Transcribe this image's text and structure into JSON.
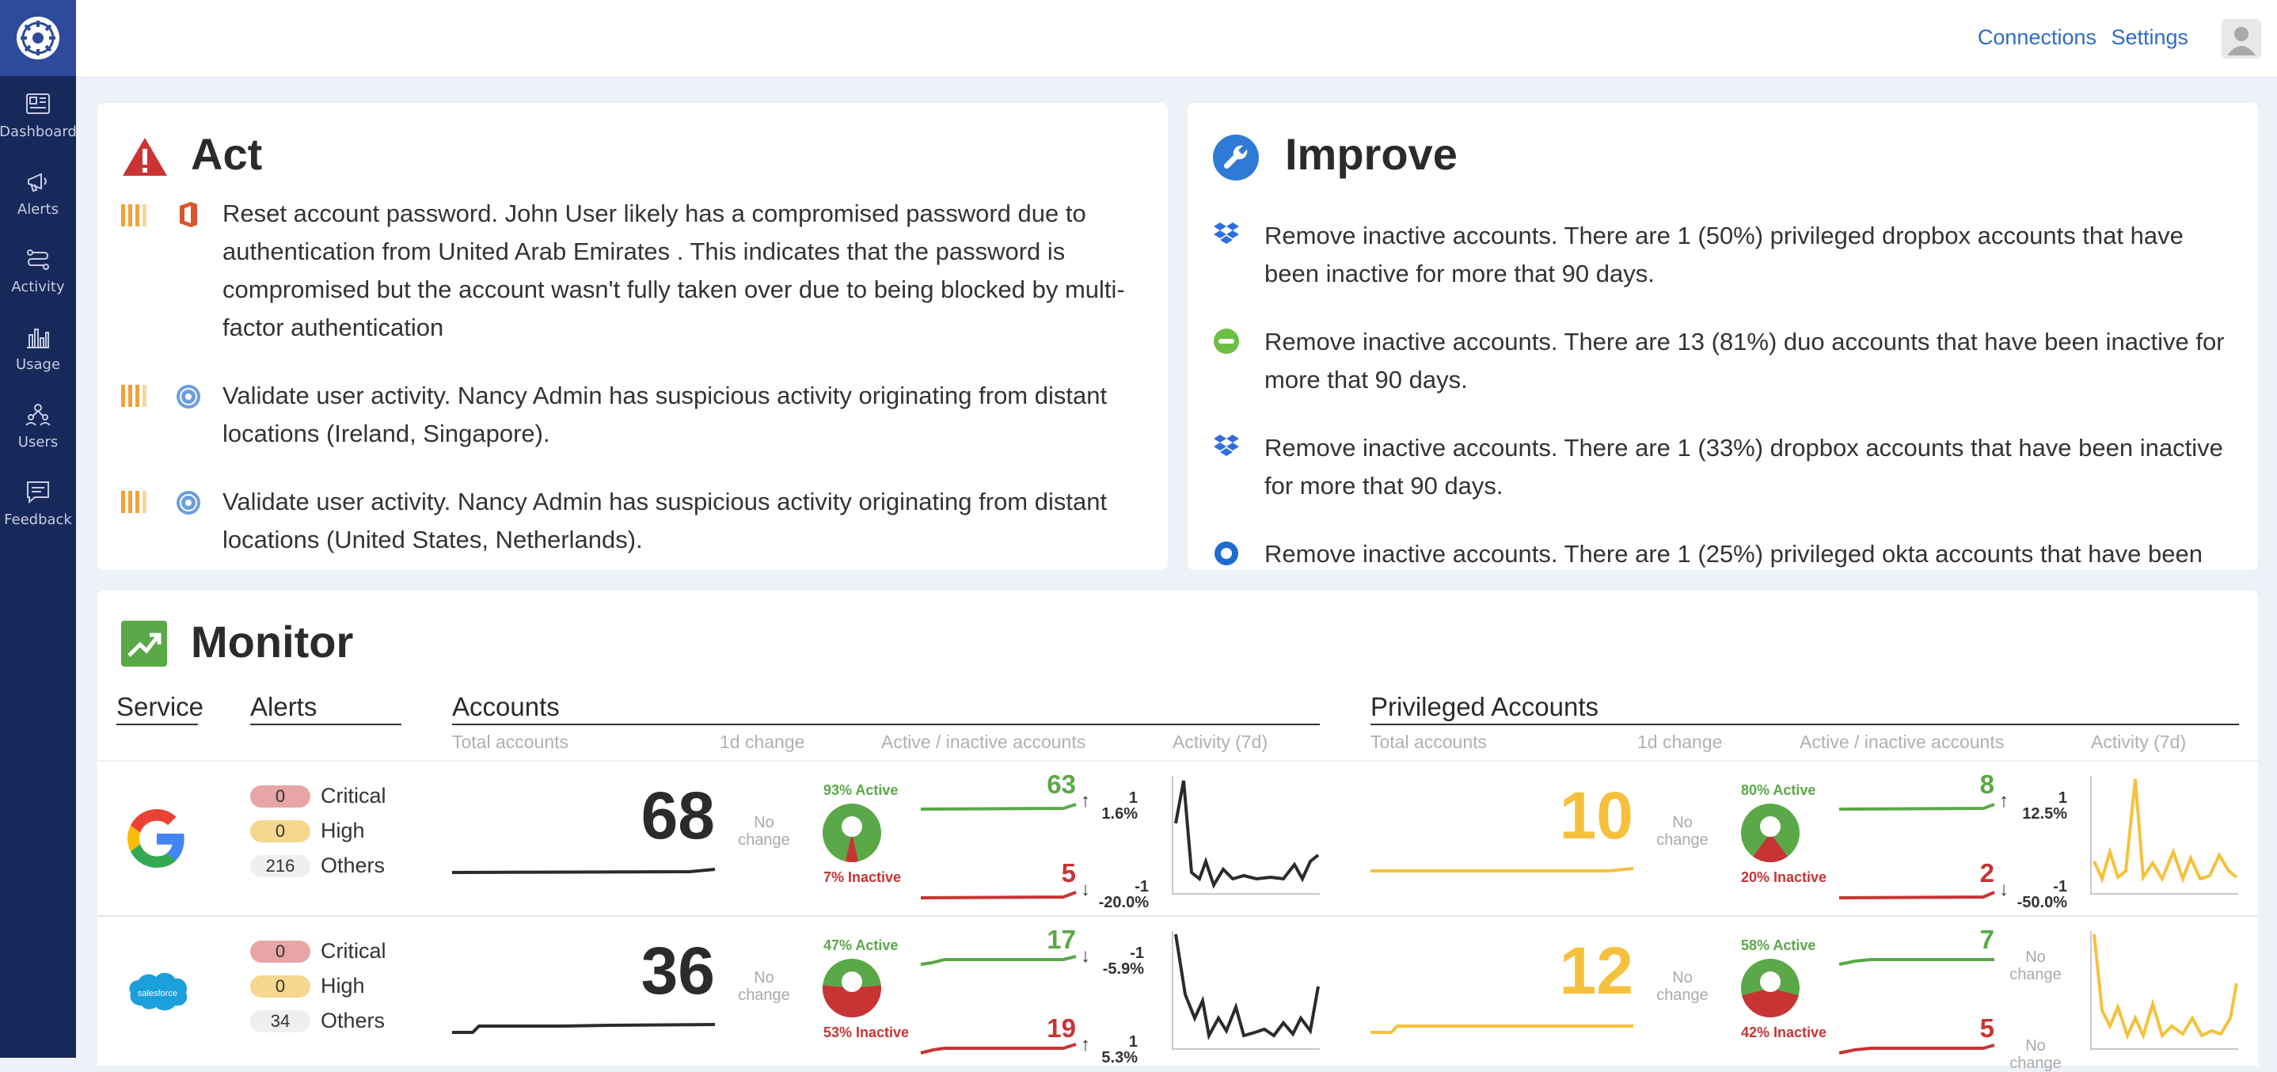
{
  "sidebar": {
    "items": [
      {
        "label": "Dashboard",
        "icon": "dashboard-icon"
      },
      {
        "label": "Alerts",
        "icon": "megaphone-icon"
      },
      {
        "label": "Activity",
        "icon": "activity-icon"
      },
      {
        "label": "Usage",
        "icon": "usage-chart-icon"
      },
      {
        "label": "Users",
        "icon": "users-icon"
      },
      {
        "label": "Feedback",
        "icon": "feedback-icon"
      }
    ]
  },
  "topbar": {
    "connections": "Connections",
    "settings": "Settings"
  },
  "act": {
    "title": "Act",
    "items": [
      {
        "text": "Reset account password. John User likely has a compromised password due to authentication from United Arab Emirates . This indicates that the password is compromised but the account wasn't fully taken over due to being blocked by multi-factor authentication",
        "service_icon": "office-icon"
      },
      {
        "text": "Validate user activity. Nancy Admin has suspicious activity originating from distant locations (Ireland, Singapore).",
        "service_icon": "app-logo-icon"
      },
      {
        "text": "Validate user activity. Nancy Admin has suspicious activity originating from distant locations (United States, Netherlands).",
        "service_icon": "app-logo-icon"
      }
    ]
  },
  "improve": {
    "title": "Improve",
    "items": [
      {
        "text": "Remove inactive accounts. There are 1 (50%) privileged dropbox accounts that have been inactive for more that 90 days.",
        "service_icon": "dropbox-icon"
      },
      {
        "text": "Remove inactive accounts. There are 13 (81%) duo accounts that have been inactive for more that 90 days.",
        "service_icon": "duo-icon"
      },
      {
        "text": "Remove inactive accounts. There are 1 (33%) dropbox accounts that have been inactive for more that 90 days.",
        "service_icon": "dropbox-icon"
      },
      {
        "text": "Remove inactive accounts. There are 1 (25%) privileged okta accounts that have been",
        "service_icon": "okta-icon"
      }
    ]
  },
  "monitor": {
    "title": "Monitor",
    "headers": {
      "service": "Service",
      "alerts": "Alerts",
      "accounts": "Accounts",
      "privileged": "Privileged Accounts"
    },
    "subheaders": {
      "total": "Total accounts",
      "change": "1d change",
      "active_inactive": "Active / inactive accounts",
      "activity": "Activity (7d)"
    },
    "alert_labels": {
      "critical": "Critical",
      "high": "High",
      "others": "Others"
    },
    "no_change": [
      "No",
      "change"
    ],
    "colors": {
      "green": "#5aa847",
      "red": "#c83434",
      "yellow": "#f5c13d",
      "dark": "#2b2b2b"
    },
    "rows": [
      {
        "service": "google",
        "service_icon": "google-icon",
        "alerts": {
          "critical": "0",
          "high": "0",
          "others": "216"
        },
        "accounts": {
          "total": "68",
          "active_pct": "93% Active",
          "inactive_pct": "7% Inactive",
          "active_fraction": 0.93,
          "active": "63",
          "inactive": "5",
          "active_delta": {
            "arrow": "↑",
            "value": "1",
            "pct": "1.6%"
          },
          "inactive_delta": {
            "arrow": "↓",
            "value": "-1",
            "pct": "-20.0%"
          }
        },
        "privileged": {
          "total": "10",
          "active_pct": "80% Active",
          "inactive_pct": "20% Inactive",
          "active_fraction": 0.8,
          "active": "8",
          "inactive": "2",
          "active_delta": {
            "arrow": "↑",
            "value": "1",
            "pct": "12.5%"
          },
          "inactive_delta": {
            "arrow": "↓",
            "value": "-1",
            "pct": "-50.0%"
          }
        }
      },
      {
        "service": "salesforce",
        "service_icon": "salesforce-icon",
        "service_logo_text": "salesforce",
        "alerts": {
          "critical": "0",
          "high": "0",
          "others": "34"
        },
        "accounts": {
          "total": "36",
          "active_pct": "47% Active",
          "inactive_pct": "53% Inactive",
          "active_fraction": 0.47,
          "active": "17",
          "inactive": "19",
          "active_delta": {
            "arrow": "↓",
            "value": "-1",
            "pct": "-5.9%"
          },
          "inactive_delta": {
            "arrow": "↑",
            "value": "1",
            "pct": "5.3%"
          }
        },
        "privileged": {
          "total": "12",
          "active_pct": "58% Active",
          "inactive_pct": "42% Inactive",
          "active_fraction": 0.58,
          "active": "7",
          "inactive": "5"
        }
      }
    ]
  }
}
